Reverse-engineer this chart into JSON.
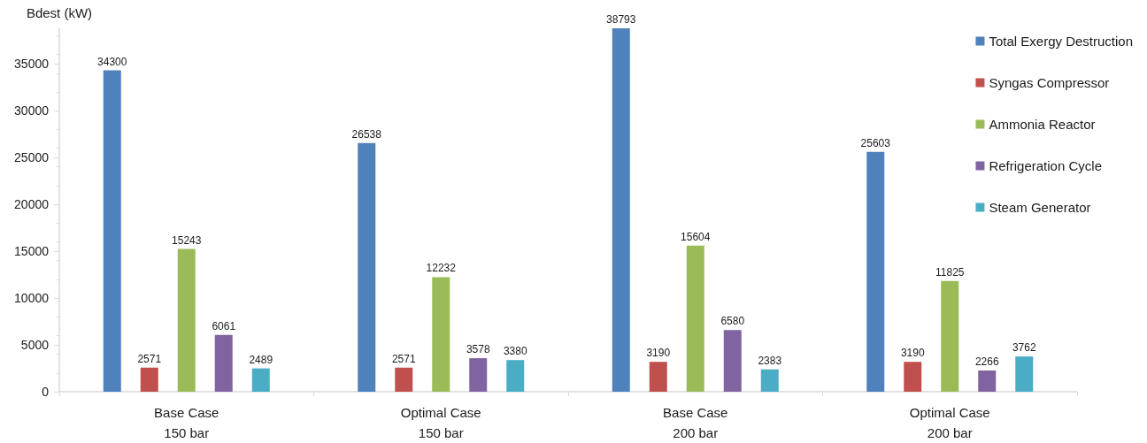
{
  "chart_data": {
    "type": "bar",
    "ylabel": "Bdest (kW)",
    "categories": [
      "Base Case\n150 bar",
      "Optimal Case\n150 bar",
      "Base Case\n200 bar",
      "Optimal Case\n200 bar"
    ],
    "series": [
      {
        "name": "Total Exergy Destruction",
        "color": "#4f81bd",
        "values": [
          34300,
          26538,
          38793,
          25603
        ]
      },
      {
        "name": "Syngas Compressor",
        "color": "#c0504d",
        "values": [
          2571,
          2571,
          3190,
          3190
        ]
      },
      {
        "name": "Ammonia Reactor",
        "color": "#9bbb59",
        "values": [
          15243,
          12232,
          15604,
          11825
        ]
      },
      {
        "name": "Refrigeration Cycle",
        "color": "#8064a2",
        "values": [
          6061,
          3578,
          6580,
          2266
        ]
      },
      {
        "name": "Steam Generator",
        "color": "#4bacc6",
        "values": [
          2489,
          3380,
          2383,
          3762
        ]
      }
    ],
    "ylim": [
      0,
      38793
    ],
    "yticks": [
      0,
      5000,
      10000,
      15000,
      20000,
      25000,
      30000,
      35000
    ],
    "grid": false,
    "legend": "top right",
    "data_labels": true
  }
}
